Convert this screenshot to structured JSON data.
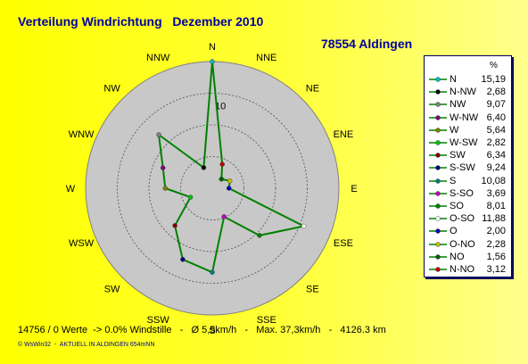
{
  "title": "Verteilung Windrichtung   Dezember 2010",
  "station": "78554 Aldingen",
  "legend_header": "%",
  "footer": "14756 / 0 Werte  -> 0.0% Windstille   -   Ø 5,5km/h   -   Max. 37,3km/h   -   4126.3 km",
  "credit": "© WsWin32  -  AKTUELL IN ALDINGEN 654mNN",
  "chart_data": {
    "type": "radar",
    "title": "Verteilung Windrichtung   Dezember 2010",
    "grid": true,
    "legend_position": "right",
    "radial_tick_label": "10",
    "radial_max": 15.19,
    "series_color": "#008000",
    "directions": [
      "N",
      "NNE",
      "NE",
      "ENE",
      "E",
      "ESE",
      "SE",
      "SSE",
      "S",
      "SSW",
      "SW",
      "WSW",
      "W",
      "WNW",
      "NW",
      "NNW"
    ],
    "legend": [
      {
        "dir": "N",
        "value": "15,19",
        "color": "#00c0c0"
      },
      {
        "dir": "N-NW",
        "value": "2,68",
        "color": "#000000"
      },
      {
        "dir": "NW",
        "value": "9,07",
        "color": "#808080"
      },
      {
        "dir": "W-NW",
        "value": "6,40",
        "color": "#800080"
      },
      {
        "dir": "W",
        "value": "5,64",
        "color": "#808000"
      },
      {
        "dir": "W-SW",
        "value": "2,82",
        "color": "#00c000"
      },
      {
        "dir": "SW",
        "value": "6,34",
        "color": "#800000"
      },
      {
        "dir": "S-SW",
        "value": "9,24",
        "color": "#000080"
      },
      {
        "dir": "S",
        "value": "10,08",
        "color": "#008080"
      },
      {
        "dir": "S-SO",
        "value": "3,69",
        "color": "#c000c0"
      },
      {
        "dir": "SO",
        "value": "8,01",
        "color": "#008000"
      },
      {
        "dir": "O-SO",
        "value": "11,88",
        "color": "#ffffff"
      },
      {
        "dir": "O",
        "value": "2,00",
        "color": "#0000c0"
      },
      {
        "dir": "O-NO",
        "value": "2,28",
        "color": "#c0c000"
      },
      {
        "dir": "NO",
        "value": "1,56",
        "color": "#006000"
      },
      {
        "dir": "N-NO",
        "value": "3,12",
        "color": "#c00000"
      }
    ]
  }
}
